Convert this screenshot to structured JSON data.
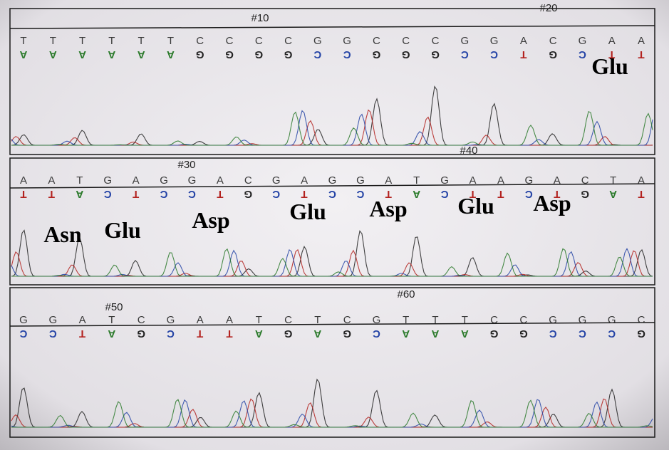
{
  "panels": [
    {
      "markers": [
        "#10",
        "#20"
      ],
      "bases": [
        "T",
        "T",
        "T",
        "T",
        "T",
        "T",
        "C",
        "C",
        "C",
        "C",
        "G",
        "G",
        "C",
        "C",
        "C",
        "G",
        "G",
        "A",
        "C",
        "G",
        "A",
        "A"
      ],
      "complement": [
        "A",
        "A",
        "A",
        "A",
        "A",
        "A",
        "G",
        "G",
        "G",
        "G",
        "C",
        "C",
        "G",
        "G",
        "G",
        "C",
        "C",
        "T",
        "G",
        "C",
        "T",
        "T"
      ],
      "amino_acids": [
        "Glu"
      ]
    },
    {
      "markers": [
        "#30",
        "#40"
      ],
      "bases": [
        "A",
        "A",
        "T",
        "G",
        "A",
        "G",
        "G",
        "A",
        "C",
        "G",
        "A",
        "G",
        "G",
        "A",
        "T",
        "G",
        "A",
        "A",
        "G",
        "A",
        "C",
        "T",
        "A"
      ],
      "complement": [
        "T",
        "T",
        "A",
        "C",
        "T",
        "C",
        "C",
        "T",
        "G",
        "C",
        "T",
        "C",
        "C",
        "T",
        "A",
        "C",
        "T",
        "T",
        "C",
        "T",
        "G",
        "A",
        "T"
      ],
      "amino_acids": [
        "Asn",
        "Glu",
        "Asp",
        "Glu",
        "Asp",
        "Glu",
        "Asp"
      ]
    },
    {
      "markers": [
        "#50",
        "#60"
      ],
      "bases": [
        "G",
        "G",
        "A",
        "T",
        "C",
        "G",
        "A",
        "A",
        "T",
        "C",
        "T",
        "C",
        "G",
        "T",
        "T",
        "T",
        "C",
        "C",
        "G",
        "G",
        "G",
        "C"
      ],
      "complement": [
        "C",
        "C",
        "T",
        "A",
        "G",
        "C",
        "T",
        "T",
        "A",
        "G",
        "A",
        "G",
        "C",
        "A",
        "A",
        "A",
        "G",
        "G",
        "C",
        "C",
        "C",
        "G"
      ],
      "amino_acids": []
    }
  ]
}
